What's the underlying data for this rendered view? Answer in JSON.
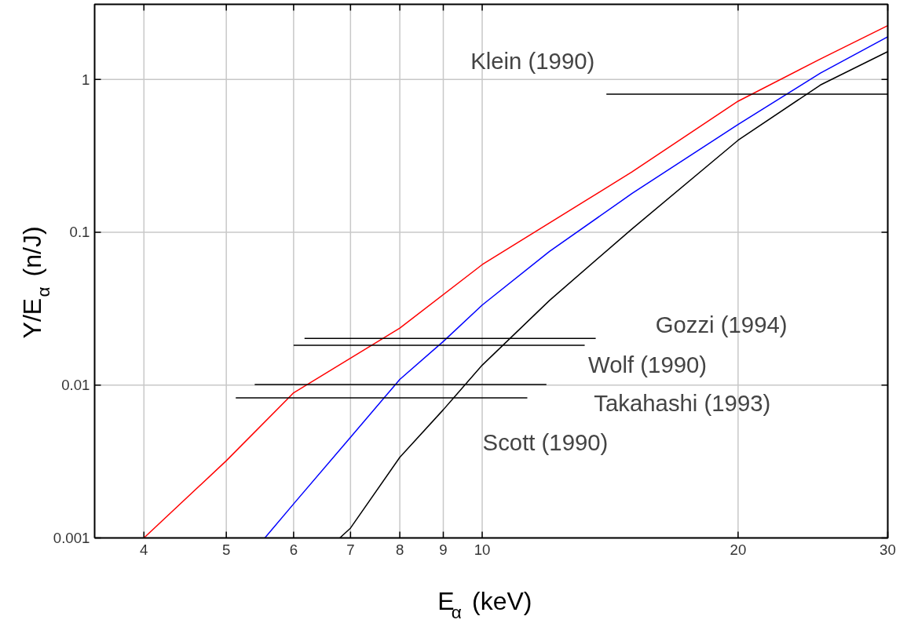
{
  "chart_data": {
    "type": "line",
    "xlabel": "E$_{α}$ (keV)",
    "ylabel": "Y/E$_{α}$ (n/J)",
    "log": "xy",
    "grid": true,
    "xlim": [
      3.5,
      30
    ],
    "ylim": [
      0.001,
      3.1
    ],
    "xticks": [
      4,
      5,
      6,
      7,
      8,
      9,
      10,
      20,
      30
    ],
    "yticks": [
      0.001,
      0.01,
      0.1,
      1
    ],
    "series": [
      {
        "color": "#ff0000",
        "x": [
          4,
          5,
          6,
          8,
          10,
          15,
          20,
          25,
          30
        ],
        "values": [
          0.001,
          0.0032,
          0.0089,
          0.0236,
          0.0614,
          0.248,
          0.72,
          1.36,
          2.25
        ]
      },
      {
        "color": "#0000ff",
        "x": [
          5.55,
          6,
          7,
          8,
          9,
          10,
          12,
          15,
          20,
          25,
          30
        ],
        "values": [
          0.001,
          0.00167,
          0.00455,
          0.0109,
          0.0193,
          0.0334,
          0.075,
          0.179,
          0.507,
          1.1,
          1.9
        ]
      },
      {
        "color": "#000000",
        "x": [
          6.8,
          7,
          8,
          9,
          10,
          12,
          15,
          20,
          25,
          30
        ],
        "values": [
          0.001,
          0.00116,
          0.00337,
          0.0069,
          0.0135,
          0.0358,
          0.105,
          0.4,
          0.92,
          1.52
        ]
      },
      {
        "name": "Klein (1990)",
        "color": "#000000",
        "x": [
          14.0,
          30
        ],
        "values": [
          0.8,
          0.8
        ]
      },
      {
        "name": "Gozzi (1994)",
        "color": "#000000",
        "x": [
          6.18,
          13.6
        ],
        "values": [
          0.0202,
          0.0202
        ]
      },
      {
        "name": "Wolf (1990)",
        "color": "#000000",
        "x": [
          6.0,
          13.2
        ],
        "values": [
          0.0182,
          0.0182
        ]
      },
      {
        "name": "Takahashi (1993)",
        "color": "#000000",
        "x": [
          5.4,
          11.9
        ],
        "values": [
          0.0101,
          0.0101
        ]
      },
      {
        "name": "Scott (1990)",
        "color": "#000000",
        "x": [
          5.13,
          11.3
        ],
        "values": [
          0.00826,
          0.00826
        ]
      }
    ]
  }
}
